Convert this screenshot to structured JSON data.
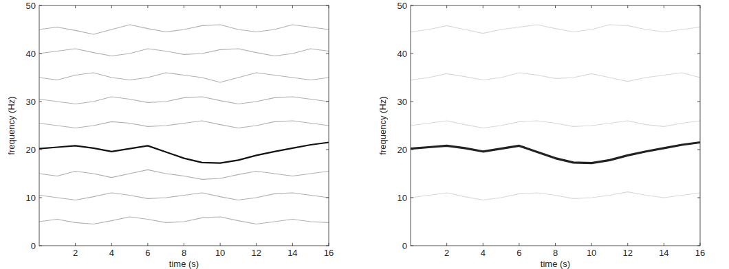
{
  "chart_data": [
    {
      "type": "line",
      "xlabel": "time (s)",
      "ylabel": "frequency (Hz)",
      "x": [
        0,
        1,
        2,
        3,
        4,
        5,
        6,
        7,
        8,
        9,
        10,
        11,
        12,
        13,
        14,
        15,
        16
      ],
      "xlim": [
        0,
        16
      ],
      "ylim": [
        0,
        50
      ],
      "xticks": [
        2,
        4,
        6,
        8,
        10,
        12,
        14,
        16
      ],
      "yticks": [
        0,
        10,
        20,
        30,
        40,
        50
      ],
      "series": [
        {
          "color": "#b0b0b0",
          "values": [
            45,
            45.5,
            44.8,
            44,
            45,
            46,
            45.2,
            44.5,
            45,
            45.8,
            46,
            45,
            44.5,
            45,
            46,
            45.5,
            45
          ]
        },
        {
          "color": "#b0b0b0",
          "values": [
            40,
            40.5,
            41,
            40.2,
            39.5,
            40,
            41,
            40.5,
            39.8,
            40,
            40.8,
            41,
            40.2,
            39.5,
            40,
            41,
            40.5
          ]
        },
        {
          "color": "#b0b0b0",
          "values": [
            35,
            34.5,
            35.5,
            36,
            35,
            34.5,
            35,
            36,
            35.5,
            35,
            34,
            35,
            36,
            35.5,
            35,
            34.5,
            35
          ]
        },
        {
          "color": "#b0b0b0",
          "values": [
            30.5,
            30,
            29.5,
            30,
            31,
            30.5,
            29.8,
            30,
            30.8,
            31,
            30.2,
            29.5,
            30,
            30.8,
            31,
            30.5,
            30
          ]
        },
        {
          "color": "#b0b0b0",
          "values": [
            25.5,
            25,
            24.5,
            25,
            25.8,
            25.5,
            24.8,
            25,
            25.5,
            26,
            25.2,
            24.5,
            25,
            25.8,
            26,
            25.5,
            25
          ]
        },
        {
          "color": "#b0b0b0",
          "values": [
            15,
            14.5,
            15.5,
            15,
            14.2,
            15,
            15.8,
            15,
            14.5,
            13.8,
            14,
            14.8,
            15.5,
            15,
            14.5,
            15,
            15.5
          ]
        },
        {
          "color": "#b0b0b0",
          "values": [
            10.5,
            10,
            9.5,
            10.2,
            11,
            10.5,
            9.8,
            10,
            10.5,
            11,
            10.2,
            9.5,
            10,
            10.8,
            11,
            10.5,
            10
          ]
        },
        {
          "color": "#b0b0b0",
          "values": [
            5,
            5.5,
            4.8,
            4.5,
            5.2,
            6,
            5.5,
            4.8,
            5,
            5.8,
            6,
            5.2,
            4.5,
            5,
            5.5,
            5,
            4.8
          ]
        },
        {
          "color": "#111111",
          "values": [
            20.2,
            20.5,
            20.8,
            20.3,
            19.6,
            20.2,
            20.8,
            19.5,
            18.2,
            17.3,
            17.2,
            17.8,
            18.8,
            19.6,
            20.3,
            21.0,
            21.5
          ]
        }
      ]
    },
    {
      "type": "line",
      "xlabel": "time (s)",
      "ylabel": "frequency (Hz)",
      "x": [
        0,
        1,
        2,
        3,
        4,
        5,
        6,
        7,
        8,
        9,
        10,
        11,
        12,
        13,
        14,
        15,
        16
      ],
      "xlim": [
        0,
        16
      ],
      "ylim": [
        0,
        50
      ],
      "xticks": [
        2,
        4,
        6,
        8,
        10,
        12,
        14,
        16
      ],
      "yticks": [
        0,
        10,
        20,
        30,
        40,
        50
      ],
      "series": [
        {
          "color": "#d8d8d8",
          "values": [
            44.5,
            45,
            45.8,
            45,
            44.2,
            45,
            45.5,
            46,
            45.2,
            44.5,
            45,
            46,
            45.8,
            45,
            44.5,
            45,
            45.5
          ]
        },
        {
          "color": "#d8d8d8",
          "values": [
            34.5,
            35,
            35.8,
            35.2,
            34.5,
            35,
            36,
            35.5,
            34.8,
            35,
            35.8,
            35,
            34.2,
            35,
            35.5,
            36,
            35
          ]
        },
        {
          "color": "#d8d8d8",
          "values": [
            25,
            25.5,
            26,
            25.2,
            24.5,
            25,
            25.8,
            26,
            25.5,
            24.8,
            25,
            25.5,
            26,
            25.2,
            24.8,
            25.5,
            26
          ]
        },
        {
          "color": "#d8d8d8",
          "values": [
            10,
            10.5,
            11,
            10.2,
            9.5,
            10,
            10.8,
            11,
            10.5,
            9.8,
            10,
            10.5,
            11.2,
            10.5,
            10,
            10.5,
            11
          ]
        },
        {
          "color": "#222222",
          "values": [
            20.2,
            20.5,
            20.8,
            20.3,
            19.6,
            20.2,
            20.8,
            19.5,
            18.2,
            17.3,
            17.2,
            17.8,
            18.8,
            19.6,
            20.3,
            21.0,
            21.5
          ]
        }
      ]
    }
  ]
}
